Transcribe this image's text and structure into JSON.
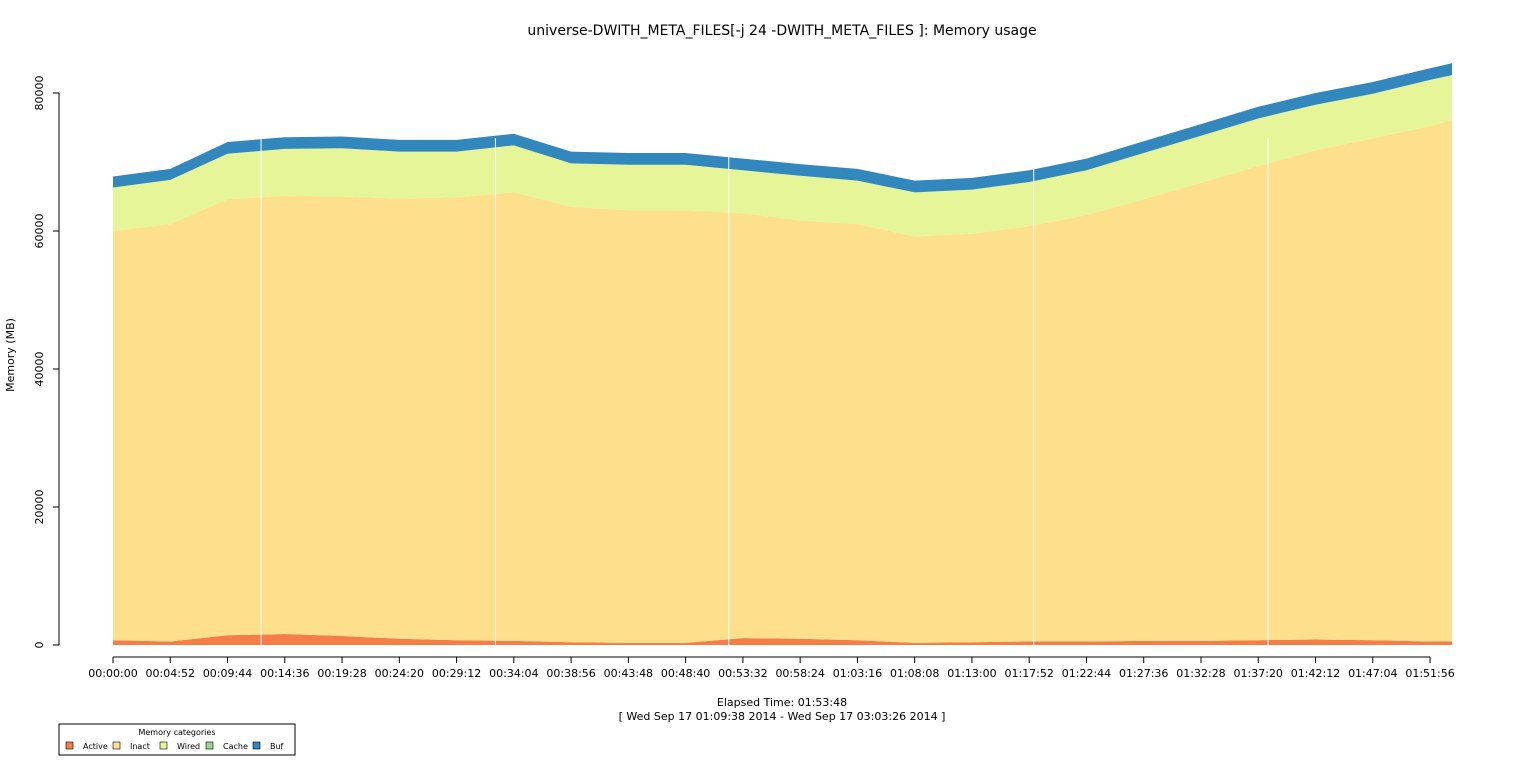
{
  "chart_data": {
    "type": "area",
    "title": "universe-DWITH_META_FILES[-j 24 -DWITH_META_FILES ]: Memory usage",
    "ylabel": "Memory (MB)",
    "xlabel": "Elapsed Time: 01:53:48",
    "xlabel_sub": "[ Wed Sep 17 01:09:38 2014 - Wed Sep 17 03:03:26 2014 ]",
    "stacked": true,
    "x_unit": "elapsed time (hh:mm:ss)",
    "xlim": [
      "00:00:00",
      "01:53:48"
    ],
    "ylim": [
      0,
      80000
    ],
    "y_ticks": [
      0,
      20000,
      40000,
      60000,
      80000
    ],
    "x_ticks": [
      "00:00:00",
      "00:04:52",
      "00:09:44",
      "00:14:36",
      "00:19:28",
      "00:24:20",
      "00:29:12",
      "00:34:04",
      "00:38:56",
      "00:43:48",
      "00:48:40",
      "00:53:32",
      "00:58:24",
      "01:03:16",
      "01:08:08",
      "01:13:00",
      "01:17:52",
      "01:22:44",
      "01:27:36",
      "01:32:28",
      "01:37:20",
      "01:42:12",
      "01:47:04",
      "01:51:56"
    ],
    "vertical_markers": [
      "00:12:35",
      "00:32:30",
      "00:52:20",
      "01:18:15",
      "01:38:10"
    ],
    "x": [
      "00:00:00",
      "00:04:52",
      "00:09:44",
      "00:14:36",
      "00:19:28",
      "00:24:20",
      "00:29:12",
      "00:34:04",
      "00:38:56",
      "00:43:48",
      "00:48:40",
      "00:53:32",
      "00:58:24",
      "01:03:16",
      "01:08:08",
      "01:13:00",
      "01:17:52",
      "01:22:44",
      "01:27:36",
      "01:32:28",
      "01:37:20",
      "01:42:12",
      "01:47:04",
      "01:51:56",
      "01:53:48"
    ],
    "series": [
      {
        "name": "Active",
        "color": "#f47d4a",
        "values": [
          700,
          500,
          1400,
          1600,
          1300,
          900,
          700,
          600,
          400,
          300,
          300,
          1000,
          900,
          700,
          300,
          400,
          500,
          500,
          600,
          600,
          700,
          800,
          700,
          500,
          500
        ]
      },
      {
        "name": "Inact",
        "color": "#fddf8c",
        "values": [
          59300,
          60500,
          63200,
          63500,
          63700,
          63800,
          64200,
          65000,
          63100,
          62700,
          62700,
          61600,
          60600,
          60300,
          58900,
          59200,
          60200,
          61800,
          64000,
          66400,
          68700,
          70900,
          72700,
          74700,
          75600
        ]
      },
      {
        "name": "Wired",
        "color": "#e6f598",
        "values": [
          6300,
          6400,
          6600,
          6800,
          7000,
          6800,
          6600,
          6800,
          6300,
          6600,
          6600,
          6200,
          6500,
          6300,
          6400,
          6400,
          6400,
          6500,
          6700,
          6800,
          6900,
          6600,
          6500,
          6700,
          6500
        ]
      },
      {
        "name": "Cache",
        "color": "#99d594",
        "values": [
          0,
          0,
          0,
          0,
          0,
          0,
          0,
          0,
          0,
          0,
          0,
          0,
          0,
          0,
          0,
          0,
          0,
          0,
          0,
          0,
          0,
          0,
          0,
          0,
          0
        ]
      },
      {
        "name": "Buf",
        "color": "#3288bd",
        "values": [
          1600,
          1600,
          1700,
          1700,
          1700,
          1700,
          1700,
          1700,
          1700,
          1700,
          1700,
          1700,
          1700,
          1700,
          1700,
          1700,
          1700,
          1700,
          1700,
          1700,
          1700,
          1700,
          1700,
          1700,
          1700
        ]
      }
    ],
    "legend": {
      "title": "Memory categories",
      "placement": "bottom-left",
      "entries": [
        "Active",
        "Inact",
        "Wired",
        "Cache",
        "Buf"
      ]
    },
    "grid": false
  }
}
